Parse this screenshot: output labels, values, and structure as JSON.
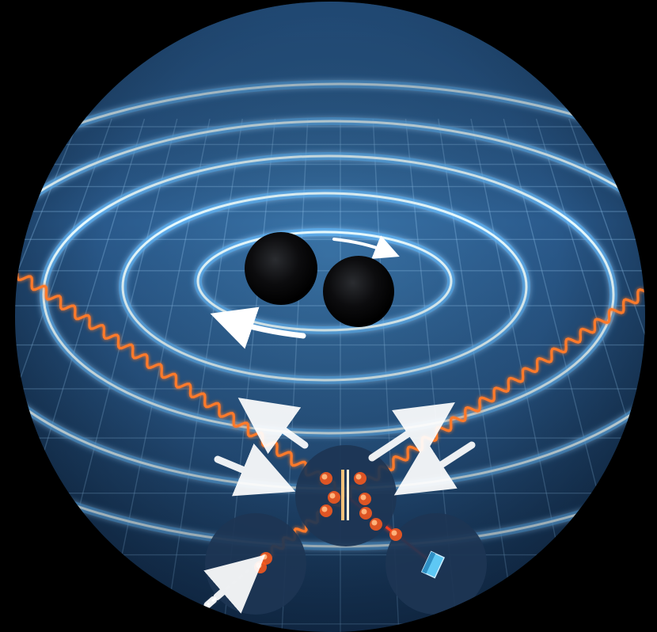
{
  "scene": {
    "subject": "binary-black-holes-gravitational-waves",
    "colors": {
      "background": "#000000",
      "disc_top": "#2f6597",
      "disc_bottom": "#122c4d",
      "grid": "#8cc0ea",
      "wave_core": "#e8fbff",
      "wave_glow": "#3fb2ff",
      "black_hole": "#0b0b0d",
      "laser": "#ff7a2c",
      "detector_circle": "#1d3554",
      "arrow": "#ffffff",
      "mirror": "#5ec8f4"
    },
    "icons": {
      "black_hole": "black-hole-icon",
      "arrow": "arrow-icon",
      "mirror": "mirror-icon",
      "beam_splitter": "beam-splitter-icon"
    }
  }
}
